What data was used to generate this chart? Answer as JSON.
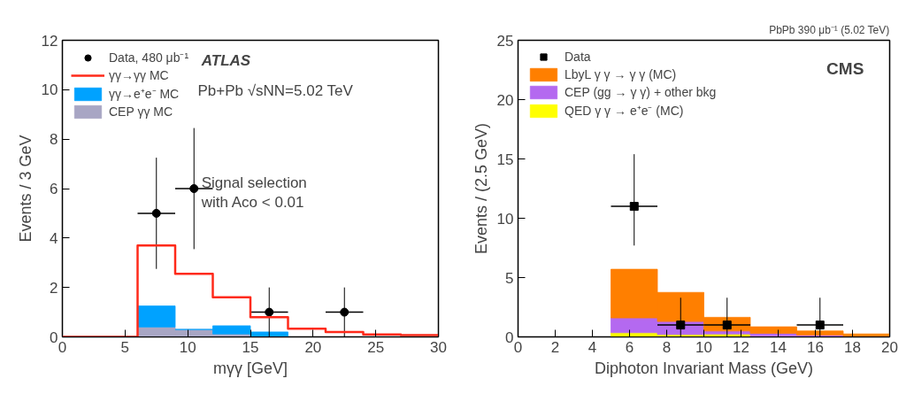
{
  "chart_data": [
    {
      "type": "bar",
      "x": [
        1.5,
        4.5,
        7.5,
        10.5,
        13.5,
        16.5,
        19.5,
        22.5,
        25.5,
        28.5
      ],
      "stacked": true,
      "xlabel": "mγγ [GeV]",
      "ylabel": "Events / 3 GeV",
      "xlim": [
        0,
        30
      ],
      "ylim": [
        0,
        12
      ],
      "xticks": [
        0,
        5,
        10,
        15,
        20,
        25,
        30
      ],
      "yticks": [
        0,
        2,
        4,
        6,
        8,
        10,
        12
      ],
      "grid": false,
      "legend": "top left",
      "annotations": [
        "ATLAS",
        "Pb+Pb √sNN=5.02 TeV",
        "Signal selection",
        "with Aco < 0.01"
      ],
      "series": [
        {
          "type": "scatter",
          "name": "Data, 480 μb⁻¹",
          "color": "#000000",
          "marker": "circle",
          "x": [
            7.5,
            10.5,
            16.5,
            22.5
          ],
          "values": [
            5,
            6,
            1,
            1
          ],
          "errors": [
            [
              2.75,
              7.25
            ],
            [
              3.55,
              8.45
            ],
            [
              0,
              2
            ],
            [
              0,
              2
            ]
          ],
          "xerrors": [
            1.5,
            1.5,
            1.5,
            1.5
          ]
        },
        {
          "type": "step",
          "name": "γγ→γγ MC",
          "color": "#ff2a1a",
          "x": [
            0,
            3,
            6,
            9,
            12,
            15,
            18,
            21,
            24,
            27,
            30
          ],
          "values": [
            0,
            0,
            3.7,
            2.55,
            1.6,
            0.8,
            0.33,
            0.2,
            0.1,
            0.07,
            0.07
          ]
        },
        {
          "name": "γγ→e⁺e⁻ MC",
          "color": "#00a2ff",
          "values": [
            0,
            0,
            0.85,
            0,
            0.33,
            0.2,
            0,
            0,
            0,
            0
          ]
        },
        {
          "name": "CEP γγ MC",
          "color": "#a8a6c4",
          "values": [
            0,
            0,
            0.4,
            0.3,
            0.12,
            0,
            0,
            0,
            0,
            0
          ]
        }
      ]
    },
    {
      "type": "bar",
      "x": [
        1.25,
        3.75,
        6.25,
        8.75,
        11.25,
        13.75,
        16.25,
        18.75
      ],
      "stacked": true,
      "title": "PbPb 390 μb⁻¹ (5.02 TeV)",
      "xlabel": "Diphoton Invariant Mass (GeV)",
      "ylabel": "Events / (2.5 GeV)",
      "xlim": [
        0,
        20
      ],
      "ylim": [
        0,
        25
      ],
      "xticks": [
        0,
        2,
        4,
        6,
        8,
        10,
        12,
        14,
        16,
        18,
        20
      ],
      "yticks": [
        0,
        5,
        10,
        15,
        20,
        25
      ],
      "grid": false,
      "legend": "top left",
      "annotations": [
        "CMS"
      ],
      "series": [
        {
          "type": "scatter",
          "name": "Data",
          "color": "#000000",
          "marker": "square",
          "x": [
            6.25,
            8.75,
            11.25,
            16.25
          ],
          "values": [
            11,
            1,
            1,
            1
          ],
          "errors": [
            [
              7.7,
              15.4
            ],
            [
              0,
              3.3
            ],
            [
              0,
              3.3
            ],
            [
              0,
              3.3
            ]
          ],
          "xerrors": [
            1.25,
            1.25,
            1.25,
            1.25
          ]
        },
        {
          "name": "LbyL γ γ → γ γ (MC)",
          "color": "#ff7f00",
          "values": [
            0,
            0,
            4.1,
            2.45,
            1.15,
            0.55,
            0.35,
            0.2
          ]
        },
        {
          "name": "CEP (gg → γ γ) + other bkg",
          "color": "#b469f0",
          "values": [
            0,
            0,
            1.25,
            1.1,
            0.25,
            0.25,
            0.15,
            0.05
          ]
        },
        {
          "name": "QED γ γ → e⁺e⁻ (MC)",
          "color": "#ffff00",
          "values": [
            0,
            0,
            0.35,
            0.2,
            0.25,
            0.05,
            0,
            0
          ]
        }
      ]
    }
  ]
}
